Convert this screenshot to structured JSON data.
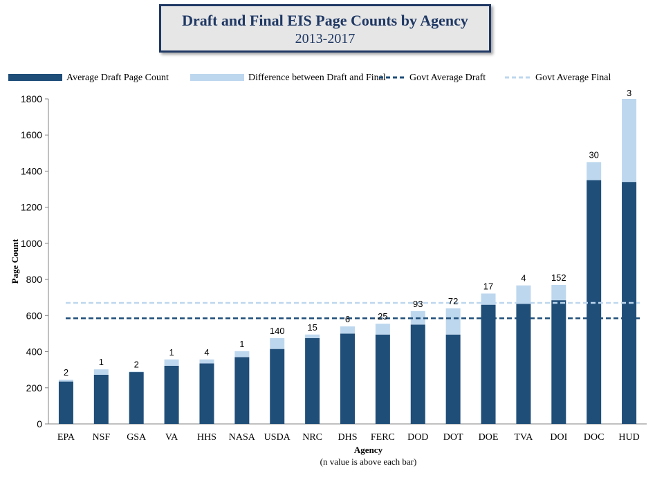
{
  "title": "Draft and Final EIS Page Counts by Agency",
  "subtitle": "2013-2017",
  "colors": {
    "draft": "#1f4e79",
    "difference": "#bdd7ee",
    "govt_draft_line": "#1f4e79",
    "govt_final_line": "#bdd7ee"
  },
  "chart_data": {
    "type": "bar",
    "stacked": true,
    "xlabel": "Agency",
    "xlabel_note": "(n value is above each bar)",
    "ylabel": "Page Count",
    "ylim": [
      0,
      1800
    ],
    "yticks": [
      0,
      200,
      400,
      600,
      800,
      1000,
      1200,
      1400,
      1600,
      1800
    ],
    "legend_position": "top",
    "categories": [
      "EPA",
      "NSF",
      "GSA",
      "VA",
      "HHS",
      "NASA",
      "USDA",
      "NRC",
      "DHS",
      "FERC",
      "DOD",
      "DOT",
      "DOE",
      "TVA",
      "DOI",
      "DOC",
      "HUD"
    ],
    "n_values": [
      "2",
      "1",
      "2",
      "1",
      "4",
      "1",
      "140",
      "15",
      "6",
      "25",
      "93",
      "72",
      "17",
      "4",
      "152",
      "30",
      "3"
    ],
    "series": [
      {
        "name": "Average Draft Page Count",
        "values": [
          235,
          272,
          287,
          322,
          335,
          370,
          415,
          475,
          500,
          495,
          550,
          495,
          660,
          665,
          685,
          1350,
          1340
        ]
      },
      {
        "name": "Difference between Draft and Final",
        "values": [
          10,
          30,
          3,
          35,
          22,
          33,
          60,
          20,
          40,
          60,
          75,
          145,
          62,
          102,
          85,
          100,
          460
        ]
      }
    ],
    "reference_lines": [
      {
        "name": "Govt Average Draft",
        "value": 585
      },
      {
        "name": "Govt Average Final",
        "value": 670
      }
    ]
  }
}
